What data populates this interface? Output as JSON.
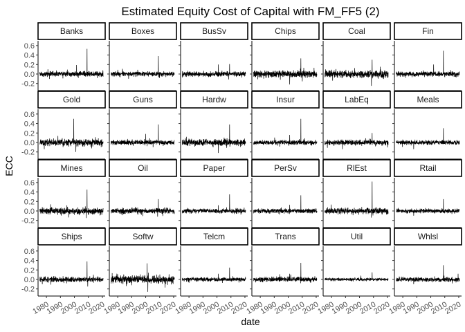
{
  "chart_data": {
    "type": "line",
    "title": "Estimated Equity Cost of Capital with FM_FF5 (2)",
    "xlabel": "date",
    "ylabel": "ECC",
    "xlim": [
      1974,
      2022
    ],
    "ylim": [
      -0.35,
      0.7
    ],
    "x_ticks": [
      "1980",
      "1990",
      "2000",
      "2010",
      "2020"
    ],
    "y_ticks": [
      "-0.2",
      "0.0",
      "0.2",
      "0.4",
      "0.6"
    ],
    "grid": false,
    "panels": [
      {
        "name": "Banks",
        "noise": 0.045,
        "min": -0.12,
        "spikes": [
          {
            "x": 2009.0,
            "y": 0.53
          },
          {
            "x": 2001.5,
            "y": 0.19
          }
        ]
      },
      {
        "name": "Boxes",
        "noise": 0.04,
        "min": -0.1,
        "spikes": [
          {
            "x": 2009.0,
            "y": 0.38
          },
          {
            "x": 1987.8,
            "y": -0.1
          }
        ]
      },
      {
        "name": "BusSv",
        "noise": 0.045,
        "min": -0.12,
        "spikes": [
          {
            "x": 2001.0,
            "y": 0.2
          },
          {
            "x": 2009.0,
            "y": 0.21
          }
        ]
      },
      {
        "name": "Chips",
        "noise": 0.06,
        "min": -0.22,
        "spikes": [
          {
            "x": 2009.0,
            "y": 0.33
          },
          {
            "x": 2001.0,
            "y": -0.22
          }
        ]
      },
      {
        "name": "Coal",
        "noise": 0.065,
        "min": -0.25,
        "spikes": [
          {
            "x": 2009.0,
            "y": 0.3
          },
          {
            "x": 2008.5,
            "y": -0.25
          }
        ]
      },
      {
        "name": "Fin",
        "noise": 0.045,
        "min": -0.12,
        "spikes": [
          {
            "x": 2009.0,
            "y": 0.49
          },
          {
            "x": 2002.0,
            "y": 0.2
          }
        ]
      },
      {
        "name": "Gold",
        "noise": 0.06,
        "min": -0.2,
        "spikes": [
          {
            "x": 1999.5,
            "y": 0.5
          },
          {
            "x": 2001.0,
            "y": -0.2
          }
        ]
      },
      {
        "name": "Guns",
        "noise": 0.04,
        "min": -0.1,
        "spikes": [
          {
            "x": 2009.0,
            "y": 0.38
          },
          {
            "x": 2000.0,
            "y": 0.18
          }
        ]
      },
      {
        "name": "Hardw",
        "noise": 0.055,
        "min": -0.22,
        "spikes": [
          {
            "x": 2009.0,
            "y": 0.38
          },
          {
            "x": 2001.0,
            "y": -0.22
          }
        ]
      },
      {
        "name": "Insur",
        "noise": 0.04,
        "min": -0.1,
        "spikes": [
          {
            "x": 2009.0,
            "y": 0.5
          },
          {
            "x": 2001.0,
            "y": 0.16
          }
        ]
      },
      {
        "name": "LabEq",
        "noise": 0.045,
        "min": -0.12,
        "spikes": [
          {
            "x": 2009.0,
            "y": 0.2
          },
          {
            "x": 1987.8,
            "y": -0.14
          }
        ]
      },
      {
        "name": "Meals",
        "noise": 0.04,
        "min": -0.1,
        "spikes": [
          {
            "x": 2009.0,
            "y": 0.3
          },
          {
            "x": 1987.8,
            "y": -0.14
          }
        ]
      },
      {
        "name": "Mines",
        "noise": 0.055,
        "min": -0.15,
        "spikes": [
          {
            "x": 2009.0,
            "y": 0.45
          },
          {
            "x": 2008.5,
            "y": -0.15
          }
        ]
      },
      {
        "name": "Oil",
        "noise": 0.045,
        "min": -0.12,
        "spikes": [
          {
            "x": 2009.0,
            "y": 0.25
          },
          {
            "x": 2008.5,
            "y": -0.12
          }
        ]
      },
      {
        "name": "Paper",
        "noise": 0.04,
        "min": -0.1,
        "spikes": [
          {
            "x": 2009.0,
            "y": 0.35
          },
          {
            "x": 2001.0,
            "y": 0.12
          }
        ]
      },
      {
        "name": "PerSv",
        "noise": 0.04,
        "min": -0.1,
        "spikes": [
          {
            "x": 2009.0,
            "y": 0.33
          },
          {
            "x": 2001.0,
            "y": 0.13
          }
        ]
      },
      {
        "name": "RlEst",
        "noise": 0.05,
        "min": -0.14,
        "spikes": [
          {
            "x": 2009.0,
            "y": 0.62
          },
          {
            "x": 2008.5,
            "y": -0.14
          }
        ]
      },
      {
        "name": "Rtail",
        "noise": 0.04,
        "min": -0.1,
        "spikes": [
          {
            "x": 2009.0,
            "y": 0.25
          },
          {
            "x": 1987.8,
            "y": -0.1
          }
        ]
      },
      {
        "name": "Ships",
        "noise": 0.045,
        "min": -0.12,
        "spikes": [
          {
            "x": 2009.0,
            "y": 0.38
          },
          {
            "x": 2009.5,
            "y": -0.15
          }
        ]
      },
      {
        "name": "Softw",
        "noise": 0.065,
        "min": -0.25,
        "spikes": [
          {
            "x": 2001.0,
            "y": 0.34
          },
          {
            "x": 2001.5,
            "y": -0.26
          }
        ]
      },
      {
        "name": "Telcm",
        "noise": 0.035,
        "min": -0.08,
        "spikes": [
          {
            "x": 2009.0,
            "y": 0.25
          },
          {
            "x": 2001.0,
            "y": 0.12
          }
        ]
      },
      {
        "name": "Trans",
        "noise": 0.04,
        "min": -0.1,
        "spikes": [
          {
            "x": 2009.0,
            "y": 0.35
          },
          {
            "x": 2001.0,
            "y": 0.12
          }
        ]
      },
      {
        "name": "Util",
        "noise": 0.025,
        "min": -0.06,
        "spikes": [
          {
            "x": 2009.0,
            "y": 0.15
          },
          {
            "x": 2001.0,
            "y": 0.08
          }
        ]
      },
      {
        "name": "Whlsl",
        "noise": 0.04,
        "min": -0.1,
        "spikes": [
          {
            "x": 2009.0,
            "y": 0.3
          },
          {
            "x": 1987.8,
            "y": -0.1
          }
        ]
      }
    ]
  }
}
